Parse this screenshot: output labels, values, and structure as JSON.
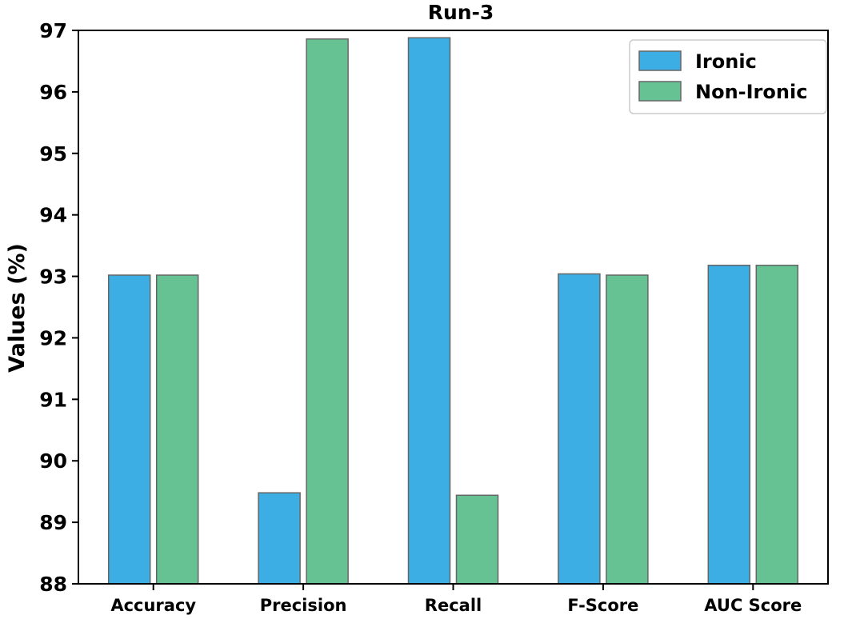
{
  "chart_data": {
    "type": "bar",
    "title": "Run-3",
    "xlabel": "",
    "ylabel": "Values (%)",
    "ylim": [
      88,
      97
    ],
    "yticks": [
      88,
      89,
      90,
      91,
      92,
      93,
      94,
      95,
      96,
      97
    ],
    "categories": [
      "Accuracy",
      "Precision",
      "Recall",
      "F-Score",
      "AUC Score"
    ],
    "series": [
      {
        "name": "Ironic",
        "color": "#3daee4",
        "values": [
          93.02,
          89.48,
          96.88,
          93.04,
          93.18
        ]
      },
      {
        "name": "Non-Ironic",
        "color": "#66c293",
        "values": [
          93.02,
          96.86,
          89.44,
          93.02,
          93.18
        ]
      }
    ],
    "legend": "top-right",
    "grid": false
  }
}
